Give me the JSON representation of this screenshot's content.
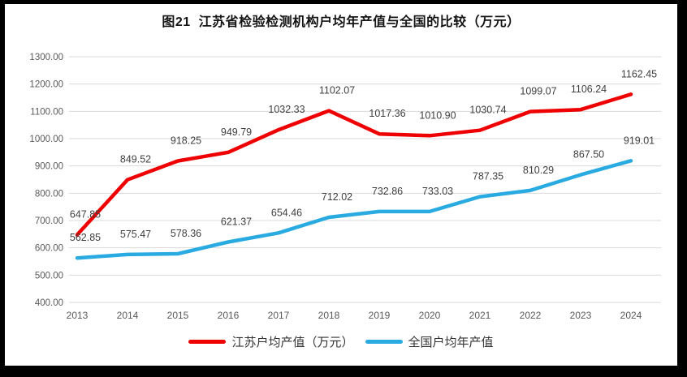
{
  "colors": {
    "series_red": "#EE0000",
    "series_blue": "#29ABE2",
    "grid": "#D9D9D9",
    "axis_text": "#595959",
    "data_label_text": "#3F3F3F",
    "frame": "#000000",
    "background": "#FFFFFF"
  },
  "chart_data": {
    "type": "line",
    "title": "图21  江苏省检验检测机构户均年产值与全国的比较（万元）",
    "x": [
      "2013",
      "2014",
      "2015",
      "2016",
      "2017",
      "2018",
      "2019",
      "2020",
      "2021",
      "2022",
      "2023",
      "2024"
    ],
    "series": [
      {
        "name": "江苏户均产值（万元）",
        "color": "#EE0000",
        "values": [
          647.85,
          849.52,
          918.25,
          949.79,
          1032.33,
          1102.07,
          1017.36,
          1010.9,
          1030.74,
          1099.07,
          1106.24,
          1162.45
        ]
      },
      {
        "name": "全国户均年产值",
        "color": "#29ABE2",
        "values": [
          562.85,
          575.47,
          578.36,
          621.37,
          654.46,
          712.02,
          732.86,
          733.03,
          787.35,
          810.29,
          867.5,
          919.01
        ]
      }
    ],
    "ylim": [
      400,
      1300
    ],
    "ytick_step": 100,
    "ytick_decimals": 2,
    "data_label_decimals": 2,
    "grid": true,
    "legend_position": "bottom"
  }
}
